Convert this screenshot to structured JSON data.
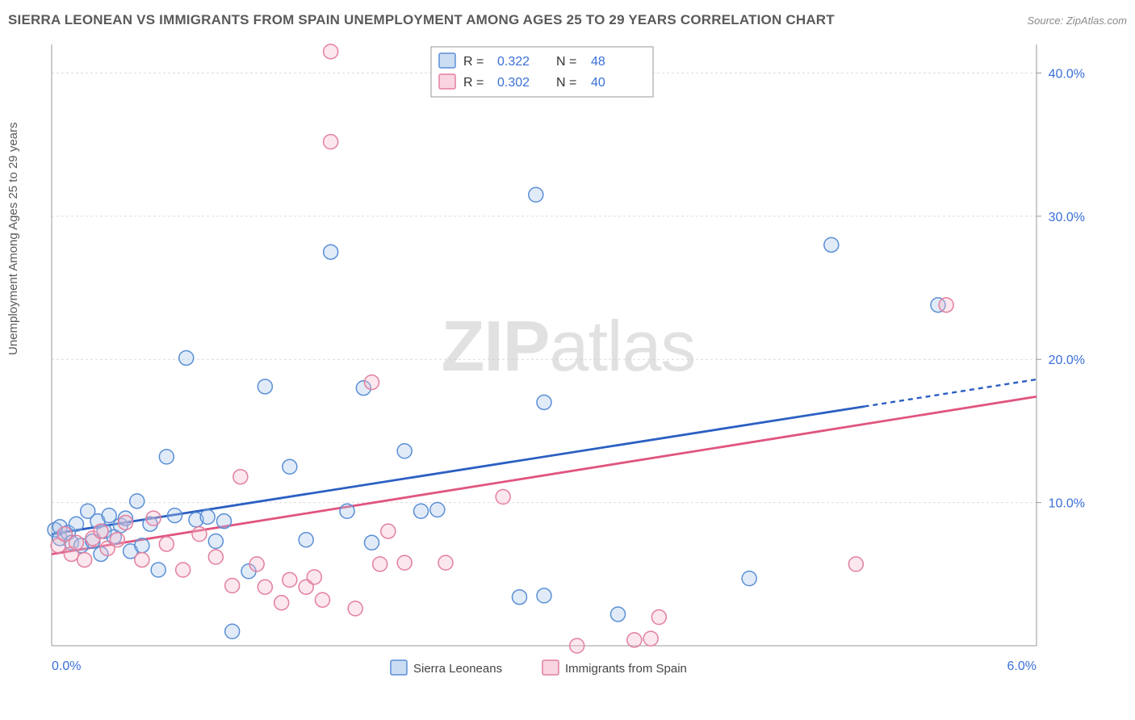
{
  "title": "SIERRA LEONEAN VS IMMIGRANTS FROM SPAIN UNEMPLOYMENT AMONG AGES 25 TO 29 YEARS CORRELATION CHART",
  "source": "Source: ZipAtlas.com",
  "watermark_bold": "ZIP",
  "watermark_rest": "atlas",
  "chart": {
    "type": "scatter",
    "y_axis_label": "Unemployment Among Ages 25 to 29 years",
    "xlim": [
      0.0,
      6.0
    ],
    "ylim": [
      0.0,
      42.0
    ],
    "x_ticks": [
      {
        "v": 0.0,
        "label": "0.0%"
      },
      {
        "v": 6.0,
        "label": "6.0%"
      }
    ],
    "y_ticks": [
      {
        "v": 10.0,
        "label": "10.0%"
      },
      {
        "v": 20.0,
        "label": "20.0%"
      },
      {
        "v": 30.0,
        "label": "30.0%"
      },
      {
        "v": 40.0,
        "label": "40.0%"
      }
    ],
    "gridline_color": "#dcdcdc",
    "gridline_dash": "3 3",
    "axis_color": "#9a9a9a",
    "background_color": "#ffffff",
    "marker_radius": 9,
    "marker_stroke_width": 1.5,
    "marker_fill_opacity": 0.35,
    "series": [
      {
        "id": "sierra_leoneans",
        "label": "Sierra Leoneans",
        "color_stroke": "#5a8fd6",
        "color_fill": "#a9c6ea",
        "trend_color": "#2b5fc2",
        "trend": {
          "y_at_x0": 7.8,
          "y_at_x6": 18.6,
          "solid_until_x": 4.95
        },
        "R": "0.322",
        "N": "48",
        "points": [
          [
            0.02,
            8.1
          ],
          [
            0.05,
            7.5
          ],
          [
            0.05,
            8.3
          ],
          [
            0.1,
            7.9
          ],
          [
            0.12,
            7.2
          ],
          [
            0.15,
            8.5
          ],
          [
            0.18,
            7.0
          ],
          [
            0.22,
            9.4
          ],
          [
            0.25,
            7.3
          ],
          [
            0.28,
            8.7
          ],
          [
            0.3,
            6.4
          ],
          [
            0.32,
            8.0
          ],
          [
            0.35,
            9.1
          ],
          [
            0.38,
            7.6
          ],
          [
            0.42,
            8.4
          ],
          [
            0.45,
            8.9
          ],
          [
            0.48,
            6.6
          ],
          [
            0.52,
            10.1
          ],
          [
            0.55,
            7.0
          ],
          [
            0.6,
            8.5
          ],
          [
            0.65,
            5.3
          ],
          [
            0.7,
            13.2
          ],
          [
            0.75,
            9.1
          ],
          [
            0.82,
            20.1
          ],
          [
            0.88,
            8.8
          ],
          [
            0.95,
            9.0
          ],
          [
            1.0,
            7.3
          ],
          [
            1.05,
            8.7
          ],
          [
            1.1,
            1.0
          ],
          [
            1.2,
            5.2
          ],
          [
            1.3,
            18.1
          ],
          [
            1.45,
            12.5
          ],
          [
            1.55,
            7.4
          ],
          [
            1.7,
            27.5
          ],
          [
            1.8,
            9.4
          ],
          [
            1.9,
            18.0
          ],
          [
            1.95,
            7.2
          ],
          [
            2.15,
            13.6
          ],
          [
            2.25,
            9.4
          ],
          [
            2.35,
            9.5
          ],
          [
            2.85,
            3.4
          ],
          [
            2.95,
            31.5
          ],
          [
            3.0,
            17.0
          ],
          [
            3.0,
            3.5
          ],
          [
            3.45,
            2.2
          ],
          [
            4.25,
            4.7
          ],
          [
            4.75,
            28.0
          ],
          [
            5.4,
            23.8
          ]
        ]
      },
      {
        "id": "immigrants_spain",
        "label": "Immigrants from Spain",
        "color_stroke": "#e37fa0",
        "color_fill": "#f3b9cb",
        "trend_color": "#e0557f",
        "trend": {
          "y_at_x0": 6.4,
          "y_at_x6": 17.4,
          "solid_until_x": 6.0
        },
        "R": "0.302",
        "N": "40",
        "points": [
          [
            0.04,
            7.0
          ],
          [
            0.08,
            7.8
          ],
          [
            0.12,
            6.4
          ],
          [
            0.15,
            7.2
          ],
          [
            0.2,
            6.0
          ],
          [
            0.25,
            7.5
          ],
          [
            0.3,
            8.0
          ],
          [
            0.34,
            6.8
          ],
          [
            0.4,
            7.4
          ],
          [
            0.45,
            8.6
          ],
          [
            0.55,
            6.0
          ],
          [
            0.62,
            8.9
          ],
          [
            0.7,
            7.1
          ],
          [
            0.8,
            5.3
          ],
          [
            0.9,
            7.8
          ],
          [
            1.0,
            6.2
          ],
          [
            1.1,
            4.2
          ],
          [
            1.15,
            11.8
          ],
          [
            1.25,
            5.7
          ],
          [
            1.3,
            4.1
          ],
          [
            1.4,
            3.0
          ],
          [
            1.45,
            4.6
          ],
          [
            1.55,
            4.1
          ],
          [
            1.6,
            4.8
          ],
          [
            1.65,
            3.2
          ],
          [
            1.7,
            41.5
          ],
          [
            1.7,
            35.2
          ],
          [
            1.85,
            2.6
          ],
          [
            1.95,
            18.4
          ],
          [
            2.0,
            5.7
          ],
          [
            2.05,
            8.0
          ],
          [
            2.15,
            5.8
          ],
          [
            2.4,
            5.8
          ],
          [
            2.75,
            10.4
          ],
          [
            3.2,
            0.0
          ],
          [
            3.65,
            0.5
          ],
          [
            3.7,
            2.0
          ],
          [
            4.9,
            5.7
          ],
          [
            5.45,
            23.8
          ],
          [
            3.55,
            0.4
          ]
        ]
      }
    ],
    "top_legend": {
      "R_label": "R  =",
      "N_label": "N  ="
    },
    "bottom_legend": {
      "items": [
        {
          "series": "sierra_leoneans"
        },
        {
          "series": "immigrants_spain"
        }
      ]
    }
  }
}
